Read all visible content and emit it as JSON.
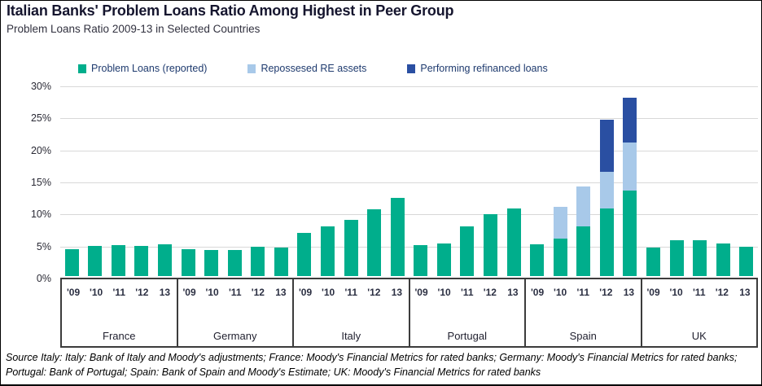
{
  "chart_data": {
    "type": "bar",
    "stacked": true,
    "title": "Italian Banks' Problem  Loans Ratio Among Highest in Peer Group",
    "subtitle": "Problem Loans Ratio 2009-13 in Selected Countries",
    "unit": "%",
    "ylim": [
      0,
      30
    ],
    "y_ticks": [
      0,
      5,
      10,
      15,
      20,
      25,
      30
    ],
    "grid": true,
    "legend_position": "top",
    "years": [
      "'09",
      "'10",
      "'11",
      "'12",
      "13"
    ],
    "series": [
      {
        "name": "Problem Loans (reported)",
        "key": "problem_loans",
        "color": "#00ae8c"
      },
      {
        "name": "Repossesed  RE assets",
        "key": "repossessed",
        "color": "#a8c9e9"
      },
      {
        "name": "Performing refinanced loans",
        "key": "refinanced",
        "color": "#2a4fa2"
      }
    ],
    "groups": [
      {
        "label": "France",
        "problem_loans": [
          4.2,
          4.7,
          4.8,
          4.7,
          5.0
        ],
        "repossessed": [
          0,
          0,
          0,
          0,
          0
        ],
        "refinanced": [
          0,
          0,
          0,
          0,
          0
        ]
      },
      {
        "label": "Germany",
        "problem_loans": [
          4.2,
          4.1,
          4.1,
          4.6,
          4.4
        ],
        "repossessed": [
          0,
          0,
          0,
          0,
          0
        ],
        "refinanced": [
          0,
          0,
          0,
          0,
          0
        ]
      },
      {
        "label": "Italy",
        "problem_loans": [
          6.8,
          7.7,
          8.8,
          10.4,
          12.2
        ],
        "repossessed": [
          0,
          0,
          0,
          0,
          0
        ],
        "refinanced": [
          0,
          0,
          0,
          0,
          0
        ]
      },
      {
        "label": "Portugal",
        "problem_loans": [
          4.8,
          5.1,
          7.7,
          9.6,
          10.5
        ],
        "repossessed": [
          0,
          0,
          0,
          0,
          0
        ],
        "refinanced": [
          0,
          0,
          0,
          0,
          0
        ]
      },
      {
        "label": "Spain",
        "problem_loans": [
          5.0,
          5.9,
          7.7,
          10.5,
          13.4
        ],
        "repossessed": [
          0,
          4.9,
          6.3,
          5.8,
          7.5
        ],
        "refinanced": [
          0,
          0,
          0,
          8.1,
          7.0
        ]
      },
      {
        "label": "UK",
        "problem_loans": [
          4.4,
          5.6,
          5.6,
          5.1,
          4.6
        ],
        "repossessed": [
          0,
          0,
          0,
          0,
          0
        ],
        "refinanced": [
          0,
          0,
          0,
          0,
          0
        ]
      }
    ]
  },
  "source": {
    "text": "Source Italy: Italy: Bank of Italy and Moody's adjustments; France: Moody's Financial Metrics for rated banks; Germany: Moody's Financial Metrics for rated banks; Portugal: Bank of Portugal; Spain: Bank of Spain and Moody's Estimate; UK: Moody's Financial Metrics for rated banks"
  }
}
